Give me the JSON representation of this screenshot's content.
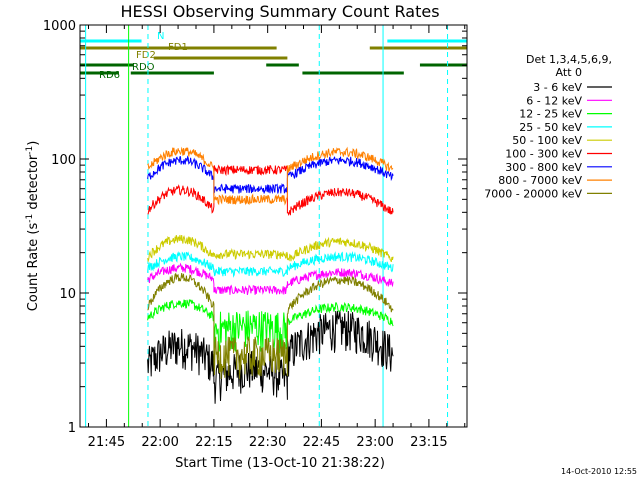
{
  "chart_data": {
    "type": "line",
    "title": "HESSI Observing Summary Count Rates",
    "xlabel": "Start Time (13-Oct-10 21:38:22)",
    "ylabel_main": "Count Rate (s",
    "ylabel_sup1": "-1",
    "ylabel_mid": " detector",
    "ylabel_sup2": "-1",
    "ylabel_end": ")",
    "yscale": "log",
    "ylim": [
      1,
      1000
    ],
    "xlim_minutes": [
      -7.37,
      100.63
    ],
    "x_ticks": [
      {
        "label": "21:45",
        "min": 0
      },
      {
        "label": "22:00",
        "min": 15
      },
      {
        "label": "22:15",
        "min": 30
      },
      {
        "label": "22:30",
        "min": 45
      },
      {
        "label": "22:45",
        "min": 60
      },
      {
        "label": "23:00",
        "min": 75
      },
      {
        "label": "23:15",
        "min": 90
      }
    ],
    "y_ticks": [
      {
        "label": "1",
        "value": 1
      },
      {
        "label": "10",
        "value": 10
      },
      {
        "label": "100",
        "value": 100
      },
      {
        "label": "1000",
        "value": 1000
      }
    ],
    "legend_header": [
      "Det 1,3,4,5,6,9,",
      "Att 0"
    ],
    "timestamp": "14-Oct-2010 12:55",
    "segments": [
      {
        "start": 11.5,
        "end": 30.0
      },
      {
        "start": 30.0,
        "end": 50.5
      },
      {
        "start": 50.5,
        "end": 80.0
      }
    ],
    "series": [
      {
        "name": "3 - 6 keV",
        "color": "#000000",
        "values": [
          3.5,
          2.5,
          4.5
        ],
        "mod": [
          0.35,
          0.2,
          0.45
        ]
      },
      {
        "name": "6 - 12 keV",
        "color": "#ff00ff",
        "values": [
          14,
          10.5,
          13
        ],
        "mod": [
          0.2,
          0.0,
          0.2
        ]
      },
      {
        "name": "12 - 25 keV",
        "color": "#00ff00",
        "values": [
          7.5,
          5.5,
          7
        ],
        "mod": [
          0.25,
          0.05,
          0.25
        ]
      },
      {
        "name": "25 - 50 keV",
        "color": "#00ffff",
        "values": [
          17,
          14.5,
          17
        ],
        "mod": [
          0.2,
          0.0,
          0.2
        ]
      },
      {
        "name": "50 - 100 keV",
        "color": "#cccc00",
        "values": [
          22,
          19.5,
          21
        ],
        "mod": [
          0.3,
          0.0,
          0.3
        ]
      },
      {
        "name": "100 - 300 keV",
        "color": "#ff0000",
        "values": [
          50,
          83,
          48
        ],
        "mod": [
          0.35,
          0.0,
          0.35
        ]
      },
      {
        "name": "300 - 800 keV",
        "color": "#0000ff",
        "values": [
          85,
          60,
          85
        ],
        "mod": [
          0.3,
          0.0,
          0.3
        ]
      },
      {
        "name": "800 - 7000 keV",
        "color": "#ff8000",
        "values": [
          100,
          50,
          98
        ],
        "mod": [
          0.3,
          0.0,
          0.3
        ]
      },
      {
        "name": "7000 - 20000 keV",
        "color": "#808000",
        "values": [
          10.5,
          3.5,
          10
        ],
        "mod": [
          0.5,
          0.0,
          0.5
        ]
      }
    ],
    "vertical_markers": [
      {
        "min": -5.8,
        "style": "solid",
        "color": "#00ffff"
      },
      {
        "min": 11.6,
        "style": "dashed",
        "color": "#00ffff"
      },
      {
        "min": 59.4,
        "style": "dashed",
        "color": "#00ffff"
      },
      {
        "min": 77.2,
        "style": "solid",
        "color": "#00ffff"
      },
      {
        "min": 95.2,
        "style": "dashed",
        "color": "#00ffff"
      },
      {
        "min": 6.2,
        "style": "solid",
        "color": "#00ff00"
      }
    ],
    "flags": [
      {
        "label": "N",
        "color": "#00ffff",
        "intervals": [
          [
            -7.37,
            9.8
          ],
          [
            78.4,
            100.63
          ]
        ],
        "row": 0
      },
      {
        "label": "FD1",
        "color": "#808000",
        "intervals": [
          [
            -7.37,
            47.5
          ],
          [
            73.5,
            100.63
          ]
        ],
        "row": 1
      },
      {
        "label": "FD2",
        "color": "#808000",
        "intervals": [
          [
            13.2,
            50.5
          ]
        ],
        "row": 2
      },
      {
        "label": "RDO",
        "color": "#006400",
        "intervals": [
          [
            -7.37,
            7.5
          ],
          [
            44.6,
            53.7
          ],
          [
            87.5,
            100.63
          ]
        ],
        "row": 3
      },
      {
        "label": "RD6",
        "color": "#006400",
        "intervals": [
          [
            -7.37,
            3.5
          ],
          [
            6.8,
            30.0
          ],
          [
            54.7,
            83.0
          ]
        ],
        "row": 4
      }
    ]
  }
}
